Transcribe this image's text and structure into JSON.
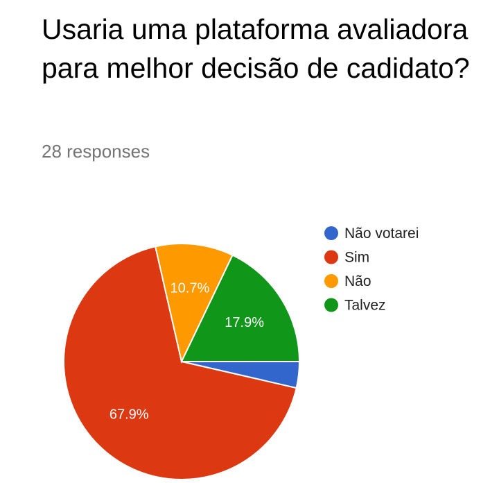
{
  "title": "Usaria uma plataforma avaliadora para melhor decisão de cadidato?",
  "subtitle": "28 responses",
  "chart_data": {
    "type": "pie",
    "slices": [
      {
        "name": "Não votarei",
        "value": 3.6,
        "label": "",
        "color": "#3366cc"
      },
      {
        "name": "Sim",
        "value": 67.9,
        "label": "67.9%",
        "color": "#dc3912"
      },
      {
        "name": "Não",
        "value": 10.7,
        "label": "10.7%",
        "color": "#ff9900"
      },
      {
        "name": "Talvez",
        "value": 17.9,
        "label": "17.9%",
        "color": "#109618"
      }
    ],
    "legend_position": "right",
    "total_responses": 28
  }
}
